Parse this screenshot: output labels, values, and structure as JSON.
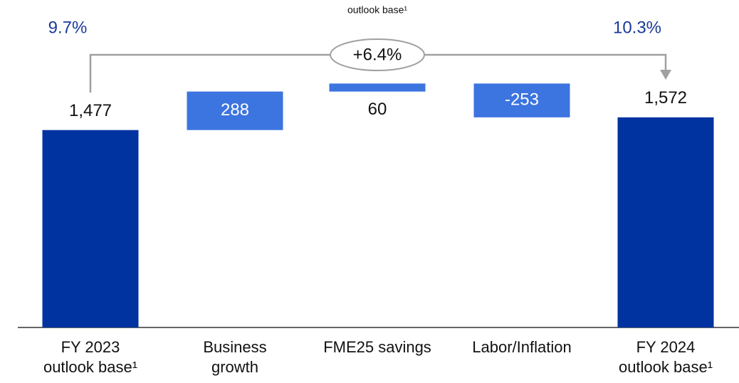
{
  "chart_data": {
    "type": "waterfall",
    "categories": [
      "FY 2023\noutlook base¹",
      "Business\ngrowth",
      "FME25 savings",
      "Labor/Inflation",
      "FY 2024\noutlook base¹"
    ],
    "values": [
      1477,
      288,
      60,
      -253,
      1572
    ],
    "value_labels": [
      "1,477",
      "288",
      "60",
      "-253",
      "1,572"
    ],
    "totals": [
      true,
      false,
      false,
      false,
      true
    ],
    "total_color": "#0033a0",
    "step_color": "#3c74e0",
    "ylim": [
      0,
      2450
    ],
    "annotations": [
      "outlook base¹",
      "9.7%",
      "+6.4%",
      "10.3%"
    ]
  }
}
